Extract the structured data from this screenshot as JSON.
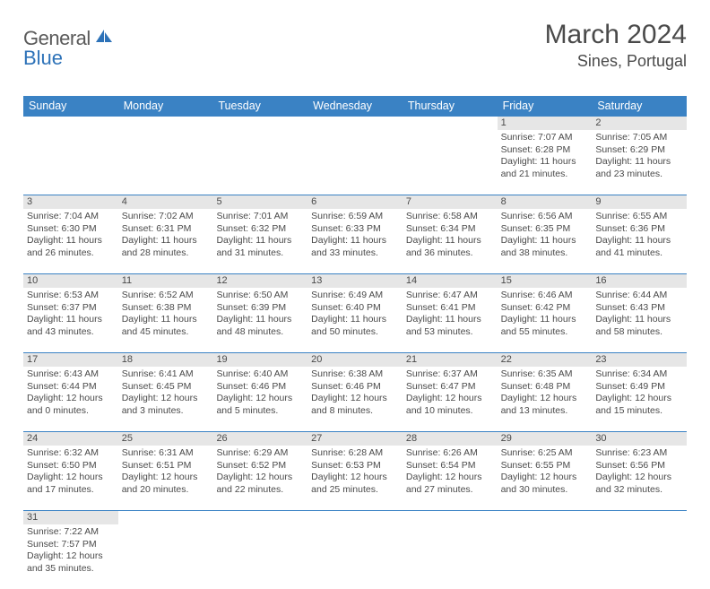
{
  "brand": {
    "part1": "General",
    "part2": "Blue"
  },
  "title": "March 2024",
  "location": "Sines, Portugal",
  "colors": {
    "header_bg": "#3a82c4",
    "header_text": "#ffffff",
    "daynum_bg": "#e6e6e6",
    "rule": "#3a82c4",
    "brand_blue": "#2d72b8",
    "text": "#4a4a4a",
    "page_bg": "#ffffff"
  },
  "typography": {
    "title_fontsize": 30,
    "location_fontsize": 18,
    "weekday_fontsize": 12.5,
    "cell_fontsize": 10.5,
    "daynum_fontsize": 11
  },
  "weekdays": [
    "Sunday",
    "Monday",
    "Tuesday",
    "Wednesday",
    "Thursday",
    "Friday",
    "Saturday"
  ],
  "weeks": [
    [
      null,
      null,
      null,
      null,
      null,
      {
        "n": "1",
        "sunrise": "Sunrise: 7:07 AM",
        "sunset": "Sunset: 6:28 PM",
        "day1": "Daylight: 11 hours",
        "day2": "and 21 minutes."
      },
      {
        "n": "2",
        "sunrise": "Sunrise: 7:05 AM",
        "sunset": "Sunset: 6:29 PM",
        "day1": "Daylight: 11 hours",
        "day2": "and 23 minutes."
      }
    ],
    [
      {
        "n": "3",
        "sunrise": "Sunrise: 7:04 AM",
        "sunset": "Sunset: 6:30 PM",
        "day1": "Daylight: 11 hours",
        "day2": "and 26 minutes."
      },
      {
        "n": "4",
        "sunrise": "Sunrise: 7:02 AM",
        "sunset": "Sunset: 6:31 PM",
        "day1": "Daylight: 11 hours",
        "day2": "and 28 minutes."
      },
      {
        "n": "5",
        "sunrise": "Sunrise: 7:01 AM",
        "sunset": "Sunset: 6:32 PM",
        "day1": "Daylight: 11 hours",
        "day2": "and 31 minutes."
      },
      {
        "n": "6",
        "sunrise": "Sunrise: 6:59 AM",
        "sunset": "Sunset: 6:33 PM",
        "day1": "Daylight: 11 hours",
        "day2": "and 33 minutes."
      },
      {
        "n": "7",
        "sunrise": "Sunrise: 6:58 AM",
        "sunset": "Sunset: 6:34 PM",
        "day1": "Daylight: 11 hours",
        "day2": "and 36 minutes."
      },
      {
        "n": "8",
        "sunrise": "Sunrise: 6:56 AM",
        "sunset": "Sunset: 6:35 PM",
        "day1": "Daylight: 11 hours",
        "day2": "and 38 minutes."
      },
      {
        "n": "9",
        "sunrise": "Sunrise: 6:55 AM",
        "sunset": "Sunset: 6:36 PM",
        "day1": "Daylight: 11 hours",
        "day2": "and 41 minutes."
      }
    ],
    [
      {
        "n": "10",
        "sunrise": "Sunrise: 6:53 AM",
        "sunset": "Sunset: 6:37 PM",
        "day1": "Daylight: 11 hours",
        "day2": "and 43 minutes."
      },
      {
        "n": "11",
        "sunrise": "Sunrise: 6:52 AM",
        "sunset": "Sunset: 6:38 PM",
        "day1": "Daylight: 11 hours",
        "day2": "and 45 minutes."
      },
      {
        "n": "12",
        "sunrise": "Sunrise: 6:50 AM",
        "sunset": "Sunset: 6:39 PM",
        "day1": "Daylight: 11 hours",
        "day2": "and 48 minutes."
      },
      {
        "n": "13",
        "sunrise": "Sunrise: 6:49 AM",
        "sunset": "Sunset: 6:40 PM",
        "day1": "Daylight: 11 hours",
        "day2": "and 50 minutes."
      },
      {
        "n": "14",
        "sunrise": "Sunrise: 6:47 AM",
        "sunset": "Sunset: 6:41 PM",
        "day1": "Daylight: 11 hours",
        "day2": "and 53 minutes."
      },
      {
        "n": "15",
        "sunrise": "Sunrise: 6:46 AM",
        "sunset": "Sunset: 6:42 PM",
        "day1": "Daylight: 11 hours",
        "day2": "and 55 minutes."
      },
      {
        "n": "16",
        "sunrise": "Sunrise: 6:44 AM",
        "sunset": "Sunset: 6:43 PM",
        "day1": "Daylight: 11 hours",
        "day2": "and 58 minutes."
      }
    ],
    [
      {
        "n": "17",
        "sunrise": "Sunrise: 6:43 AM",
        "sunset": "Sunset: 6:44 PM",
        "day1": "Daylight: 12 hours",
        "day2": "and 0 minutes."
      },
      {
        "n": "18",
        "sunrise": "Sunrise: 6:41 AM",
        "sunset": "Sunset: 6:45 PM",
        "day1": "Daylight: 12 hours",
        "day2": "and 3 minutes."
      },
      {
        "n": "19",
        "sunrise": "Sunrise: 6:40 AM",
        "sunset": "Sunset: 6:46 PM",
        "day1": "Daylight: 12 hours",
        "day2": "and 5 minutes."
      },
      {
        "n": "20",
        "sunrise": "Sunrise: 6:38 AM",
        "sunset": "Sunset: 6:46 PM",
        "day1": "Daylight: 12 hours",
        "day2": "and 8 minutes."
      },
      {
        "n": "21",
        "sunrise": "Sunrise: 6:37 AM",
        "sunset": "Sunset: 6:47 PM",
        "day1": "Daylight: 12 hours",
        "day2": "and 10 minutes."
      },
      {
        "n": "22",
        "sunrise": "Sunrise: 6:35 AM",
        "sunset": "Sunset: 6:48 PM",
        "day1": "Daylight: 12 hours",
        "day2": "and 13 minutes."
      },
      {
        "n": "23",
        "sunrise": "Sunrise: 6:34 AM",
        "sunset": "Sunset: 6:49 PM",
        "day1": "Daylight: 12 hours",
        "day2": "and 15 minutes."
      }
    ],
    [
      {
        "n": "24",
        "sunrise": "Sunrise: 6:32 AM",
        "sunset": "Sunset: 6:50 PM",
        "day1": "Daylight: 12 hours",
        "day2": "and 17 minutes."
      },
      {
        "n": "25",
        "sunrise": "Sunrise: 6:31 AM",
        "sunset": "Sunset: 6:51 PM",
        "day1": "Daylight: 12 hours",
        "day2": "and 20 minutes."
      },
      {
        "n": "26",
        "sunrise": "Sunrise: 6:29 AM",
        "sunset": "Sunset: 6:52 PM",
        "day1": "Daylight: 12 hours",
        "day2": "and 22 minutes."
      },
      {
        "n": "27",
        "sunrise": "Sunrise: 6:28 AM",
        "sunset": "Sunset: 6:53 PM",
        "day1": "Daylight: 12 hours",
        "day2": "and 25 minutes."
      },
      {
        "n": "28",
        "sunrise": "Sunrise: 6:26 AM",
        "sunset": "Sunset: 6:54 PM",
        "day1": "Daylight: 12 hours",
        "day2": "and 27 minutes."
      },
      {
        "n": "29",
        "sunrise": "Sunrise: 6:25 AM",
        "sunset": "Sunset: 6:55 PM",
        "day1": "Daylight: 12 hours",
        "day2": "and 30 minutes."
      },
      {
        "n": "30",
        "sunrise": "Sunrise: 6:23 AM",
        "sunset": "Sunset: 6:56 PM",
        "day1": "Daylight: 12 hours",
        "day2": "and 32 minutes."
      }
    ],
    [
      {
        "n": "31",
        "sunrise": "Sunrise: 7:22 AM",
        "sunset": "Sunset: 7:57 PM",
        "day1": "Daylight: 12 hours",
        "day2": "and 35 minutes."
      },
      null,
      null,
      null,
      null,
      null,
      null
    ]
  ]
}
